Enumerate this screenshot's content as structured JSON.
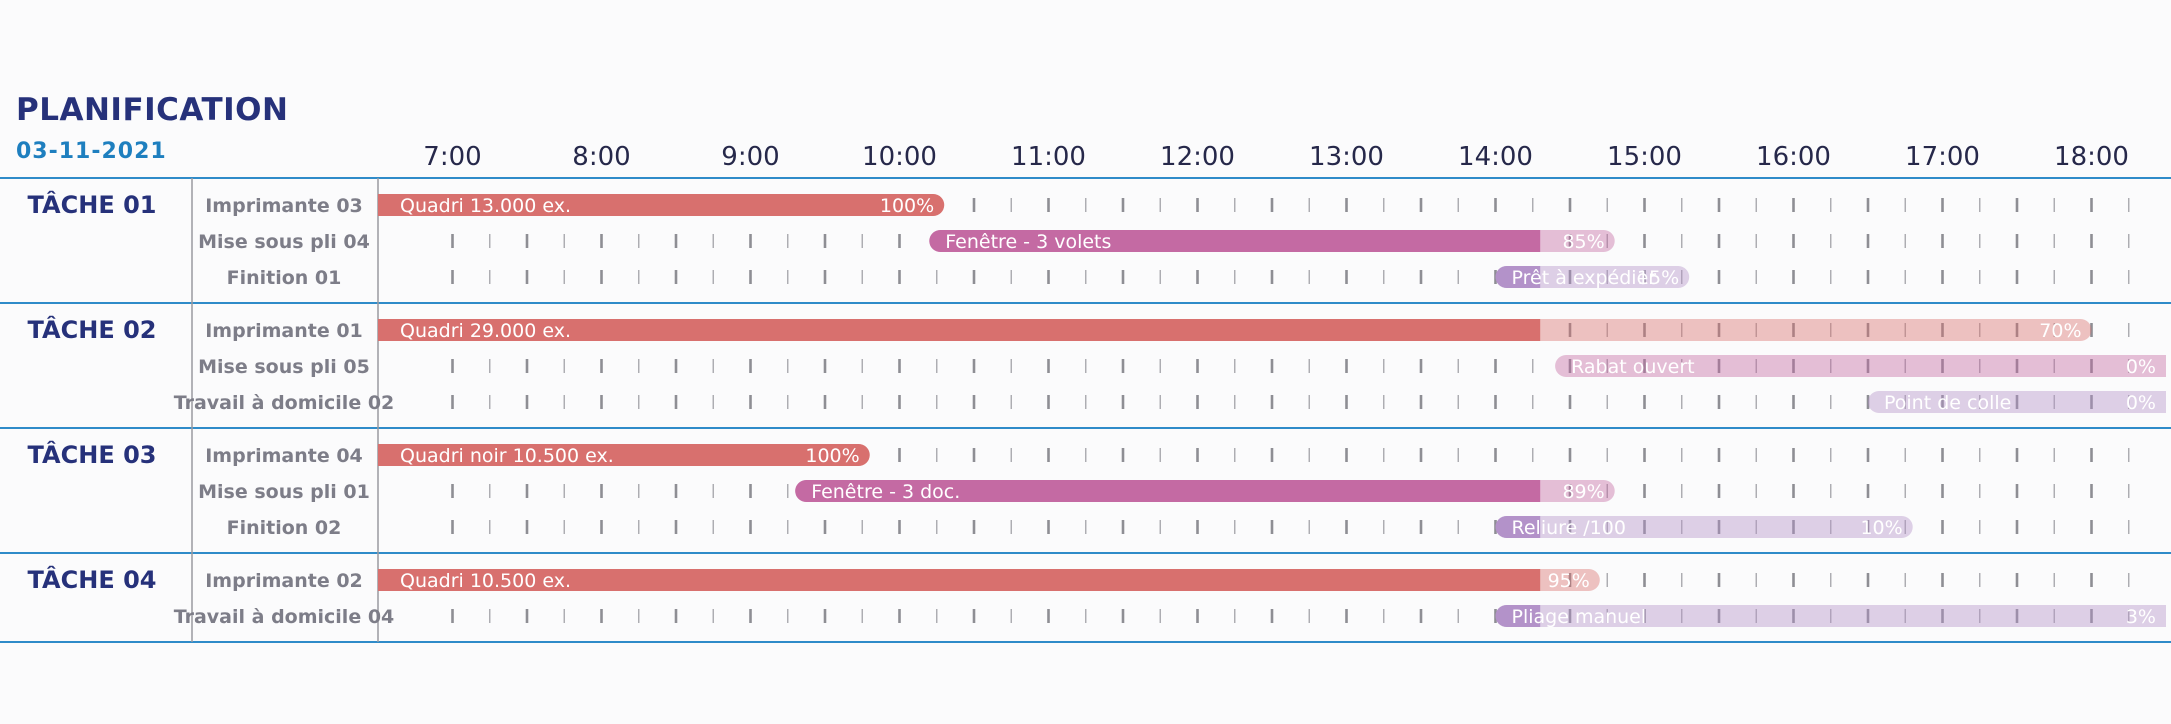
{
  "header": {
    "title": "PLANIFICATION",
    "date": "03-11-2021"
  },
  "colors": {
    "impression": "#d8706e",
    "pli": "#c46aa3",
    "finition": "#b392c9",
    "task_label": "#26317a",
    "resource_label": "#7d7d88",
    "separator": "#2f8bc9",
    "date": "#1e7fbf"
  },
  "chart_data": {
    "type": "gantt",
    "x_unit": "hour",
    "xlim": [
      6.5,
      18.5
    ],
    "hour_labels": [
      "7:00",
      "8:00",
      "9:00",
      "10:00",
      "11:00",
      "12:00",
      "13:00",
      "14:00",
      "15:00",
      "16:00",
      "17:00",
      "18:00"
    ],
    "now": 14.3,
    "tasks": [
      {
        "name": "TÂCHE 01",
        "rows": [
          {
            "resource": "Imprimante 03",
            "label": "Quadri 13.000 ex.",
            "start": 6.5,
            "end": 10.3,
            "progress": "100%",
            "kind": "impression"
          },
          {
            "resource": "Mise sous pli 04",
            "label": "Fenêtre - 3 volets",
            "start": 10.2,
            "end": 14.8,
            "progress": "85%",
            "kind": "pli"
          },
          {
            "resource": "Finition 01",
            "label": "Prêt à expédier",
            "start": 14.0,
            "end": 15.3,
            "progress": "15%",
            "kind": "finition"
          }
        ]
      },
      {
        "name": "TÂCHE 02",
        "rows": [
          {
            "resource": "Imprimante 01",
            "label": "Quadri 29.000 ex.",
            "start": 6.5,
            "end": 18.0,
            "progress": "70%",
            "kind": "impression"
          },
          {
            "resource": "Mise sous pli 05",
            "label": "Rabat ouvert",
            "start": 14.4,
            "end": 18.5,
            "progress": "0%",
            "kind": "pli"
          },
          {
            "resource": "Travail à domicile 02",
            "label": "Point de colle",
            "start": 16.5,
            "end": 18.5,
            "progress": "0%",
            "kind": "finition"
          }
        ]
      },
      {
        "name": "TÂCHE 03",
        "rows": [
          {
            "resource": "Imprimante 04",
            "label": "Quadri noir 10.500 ex.",
            "start": 6.5,
            "end": 9.8,
            "progress": "100%",
            "kind": "impression"
          },
          {
            "resource": "Mise sous pli 01",
            "label": "Fenêtre - 3 doc.",
            "start": 9.3,
            "end": 14.8,
            "progress": "89%",
            "kind": "pli"
          },
          {
            "resource": "Finition 02",
            "label": "Reliure /100",
            "start": 14.0,
            "end": 16.8,
            "progress": "10%",
            "kind": "finition"
          }
        ]
      },
      {
        "name": "TÂCHE 04",
        "rows": [
          {
            "resource": "Imprimante 02",
            "label": "Quadri 10.500 ex.",
            "start": 6.5,
            "end": 14.7,
            "progress": "95%",
            "kind": "impression"
          },
          {
            "resource": "Travail à domicile 04",
            "label": "Pliage manuel",
            "start": 14.0,
            "end": 18.5,
            "progress": "3%",
            "kind": "finition"
          }
        ]
      }
    ]
  }
}
